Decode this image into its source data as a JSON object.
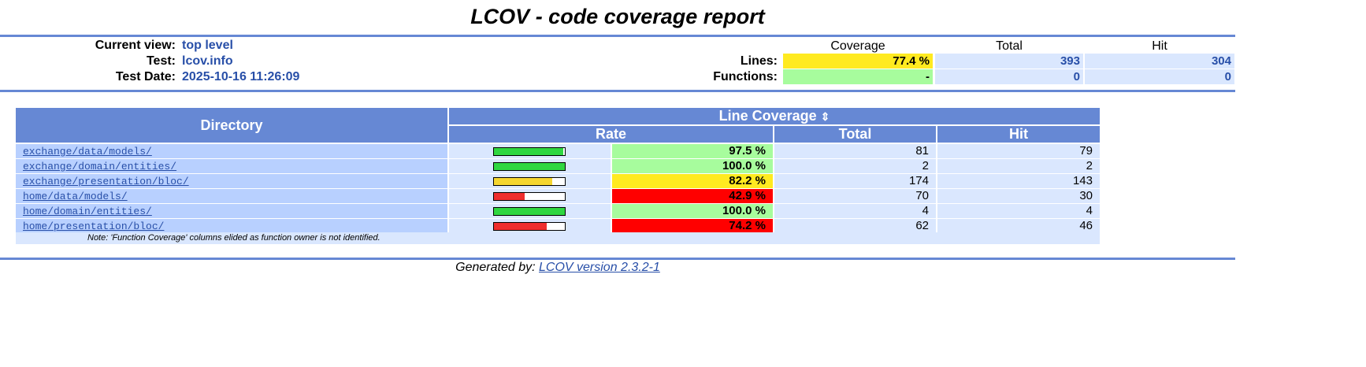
{
  "title": "LCOV - code coverage report",
  "header": {
    "current_view_label": "Current view:",
    "current_view": "top level",
    "test_label": "Test:",
    "test": "lcov.info",
    "test_date_label": "Test Date:",
    "test_date": "2025-10-16 11:26:09"
  },
  "summary": {
    "col_coverage": "Coverage",
    "col_total": "Total",
    "col_hit": "Hit",
    "lines_label": "Lines:",
    "lines_coverage": "77.4 %",
    "lines_total": "393",
    "lines_hit": "304",
    "functions_label": "Functions:",
    "functions_coverage": "-",
    "functions_total": "0",
    "functions_hit": "0"
  },
  "table": {
    "directory_header": "Directory",
    "line_coverage_header": "Line Coverage",
    "sort_icon": "⇕",
    "rate_header": "Rate",
    "total_header": "Total",
    "hit_header": "Hit",
    "rows": [
      {
        "dir": "exchange/data/models/",
        "rate": "97.5 %",
        "total": "81",
        "hit": "79",
        "fill": 0.975,
        "color": "#a7fc9d",
        "bar_color": "#30d740"
      },
      {
        "dir": "exchange/domain/entities/",
        "rate": "100.0 %",
        "total": "2",
        "hit": "2",
        "fill": 1.0,
        "color": "#a7fc9d",
        "bar_color": "#30d740"
      },
      {
        "dir": "exchange/presentation/bloc/",
        "rate": "82.2 %",
        "total": "174",
        "hit": "143",
        "fill": 0.822,
        "color": "#ffea20",
        "bar_color": "#f5d630"
      },
      {
        "dir": "home/data/models/",
        "rate": "42.9 %",
        "total": "70",
        "hit": "30",
        "fill": 0.429,
        "color": "#ff0000",
        "bar_color": "#ef2e2e"
      },
      {
        "dir": "home/domain/entities/",
        "rate": "100.0 %",
        "total": "4",
        "hit": "4",
        "fill": 1.0,
        "color": "#a7fc9d",
        "bar_color": "#30d740"
      },
      {
        "dir": "home/presentation/bloc/",
        "rate": "74.2 %",
        "total": "62",
        "hit": "46",
        "fill": 0.742,
        "color": "#ff0000",
        "bar_color": "#ef2e2e"
      }
    ],
    "note": "Note: 'Function Coverage' columns elided as function owner is not identified."
  },
  "footer": {
    "prefix": "Generated by:",
    "link": "LCOV version 2.3.2-1"
  },
  "colors": {
    "header_blue": "#6688d4",
    "dir_bg": "#b8d0ff",
    "num_bg": "#dae7fe",
    "link_blue": "#284fa8",
    "high": "#a7fc9d",
    "medium": "#ffea20",
    "low": "#ff0000"
  }
}
